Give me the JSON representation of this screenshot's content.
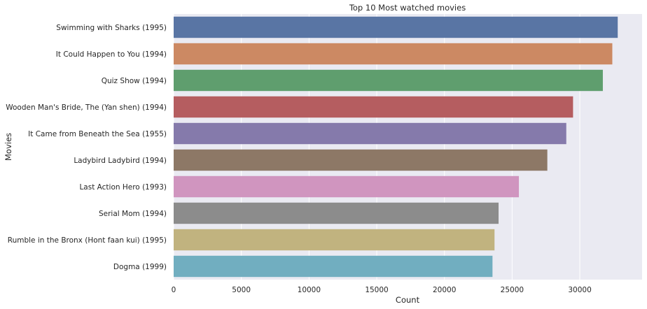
{
  "chart_data": {
    "type": "bar",
    "orientation": "horizontal",
    "title": "Top 10 Most watched movies",
    "xlabel": "Count",
    "ylabel": "Movies",
    "xlim": [
      0,
      34600
    ],
    "xticks": [
      0,
      5000,
      10000,
      15000,
      20000,
      25000,
      30000
    ],
    "grid": true,
    "background": "#eaeaf2",
    "categories": [
      "Swimming with Sharks (1995)",
      "It Could Happen to You (1994)",
      "Quiz Show (1994)",
      "Wooden Man's Bride, The (Yan shen) (1994)",
      "It Came from Beneath the Sea (1955)",
      "Ladybird Ladybird (1994)",
      "Last Action Hero (1993)",
      "Serial Mom (1994)",
      "Rumble in the Bronx (Hont faan kui) (1995)",
      "Dogma (1999)"
    ],
    "values": [
      32800,
      32400,
      31700,
      29500,
      29000,
      27600,
      25500,
      24000,
      23700,
      23550
    ],
    "colors": [
      "#5975a4",
      "#cc8963",
      "#5f9e6e",
      "#b55d60",
      "#857aab",
      "#8d7866",
      "#d095bf",
      "#8c8c8c",
      "#c1b37f",
      "#71aec0"
    ]
  }
}
